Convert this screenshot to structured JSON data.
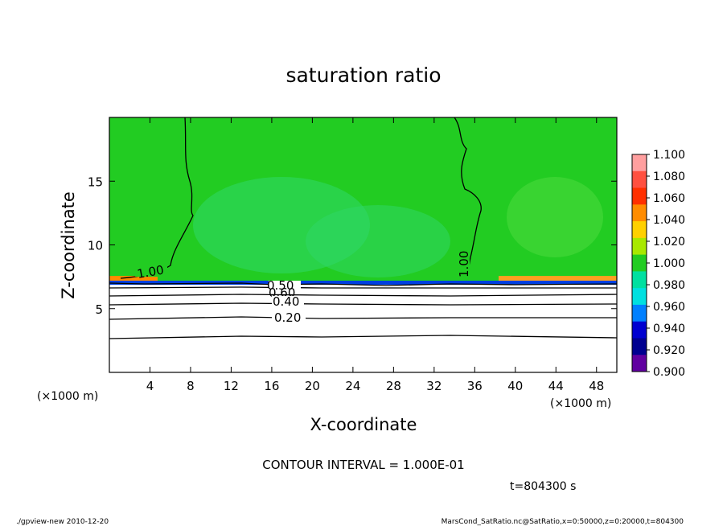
{
  "chart_data": {
    "type": "heatmap",
    "title": "saturation ratio",
    "xlabel": "X-coordinate",
    "ylabel": "Z-coordinate",
    "x_unit_left": "(×1000 m)",
    "x_unit_right": "(×1000 m)",
    "xlim": [
      0,
      50
    ],
    "ylim": [
      0,
      20
    ],
    "x_ticks": [
      4,
      8,
      12,
      16,
      20,
      24,
      28,
      32,
      36,
      40,
      44,
      48
    ],
    "y_ticks": [
      5,
      10,
      15
    ],
    "colorbar": {
      "levels": [
        "1.100",
        "1.080",
        "1.060",
        "1.040",
        "1.020",
        "1.000",
        "0.980",
        "0.960",
        "0.940",
        "0.920",
        "0.900"
      ],
      "colors": [
        "#ff9f9f",
        "#ff5040",
        "#ff3000",
        "#ff8c00",
        "#ffd000",
        "#a8e800",
        "#22cc22",
        "#00e0a0",
        "#00e0e0",
        "#0080ff",
        "#0000d0",
        "#000090",
        "#6000a0"
      ]
    },
    "contours": [
      {
        "label": "1.00",
        "x": 5.5,
        "y": 7.8
      },
      {
        "label": "1.00",
        "x": 35.0,
        "y": 8.5
      },
      {
        "label": "0.50",
        "x": 17.0,
        "y": 6.6
      },
      {
        "label": "0.60",
        "x": 17.0,
        "y": 6.1
      },
      {
        "label": "0.40",
        "x": 17.5,
        "y": 5.5
      },
      {
        "label": "0.20",
        "x": 17.5,
        "y": 4.2
      }
    ],
    "saturation_layer_base_z": 7.0,
    "contour_interval_text": "CONTOUR INTERVAL = 1.000E-01",
    "time_text": "t=804300  s"
  },
  "footer": {
    "left": "./gpview-new  2010-12-20",
    "right": "MarsCond_SatRatio.nc@SatRatio,x=0:50000,z=0:20000,t=804300"
  }
}
